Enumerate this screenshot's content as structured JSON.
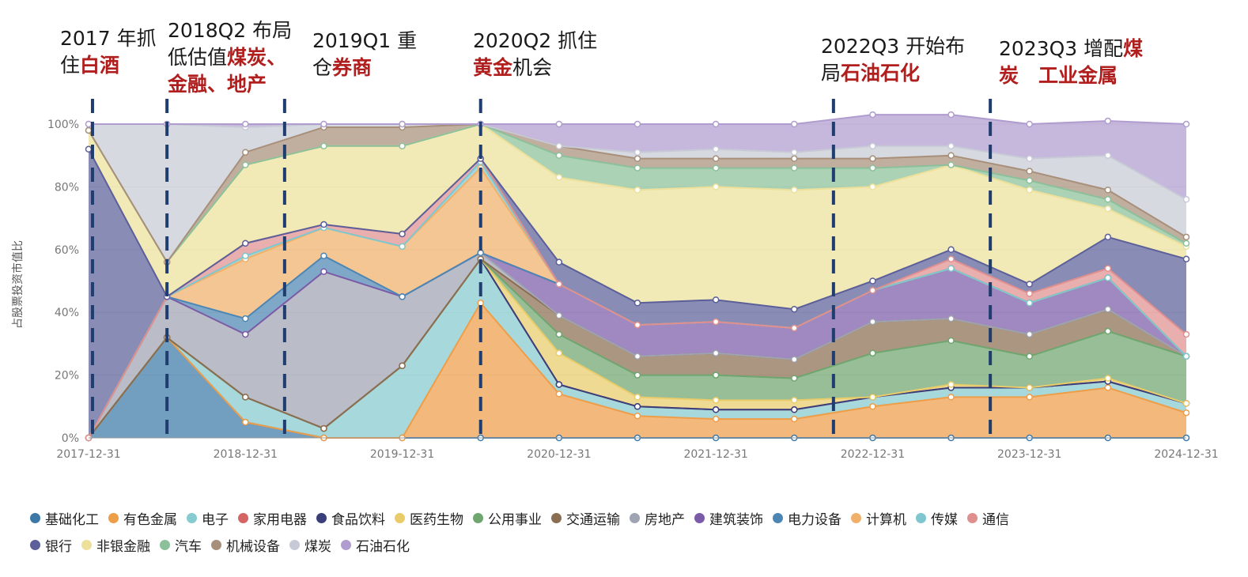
{
  "annotations": [
    {
      "lines": [
        [
          {
            "t": "2017 年抓",
            "h": false
          }
        ],
        [
          {
            "t": "住",
            "h": false
          },
          {
            "t": "白酒",
            "h": true
          }
        ]
      ]
    },
    {
      "lines": [
        [
          {
            "t": "2018Q2 布局",
            "h": false
          }
        ],
        [
          {
            "t": "低估值",
            "h": false
          },
          {
            "t": "煤炭、",
            "h": true
          }
        ],
        [
          {
            "t": "金融、地产",
            "h": true
          }
        ]
      ]
    },
    {
      "lines": [
        [
          {
            "t": "2019Q1 重",
            "h": false
          }
        ],
        [
          {
            "t": "仓",
            "h": false
          },
          {
            "t": "券商",
            "h": true
          }
        ]
      ]
    },
    {
      "lines": [
        [
          {
            "t": "2020Q2 抓住",
            "h": false
          }
        ],
        [
          {
            "t": "黄金",
            "h": true
          },
          {
            "t": "机会",
            "h": false
          }
        ]
      ]
    },
    {
      "lines": [
        [
          {
            "t": "2022Q3 开始布",
            "h": false
          }
        ],
        [
          {
            "t": "局",
            "h": false
          },
          {
            "t": "石油石化",
            "h": true
          }
        ]
      ]
    },
    {
      "lines": [
        [
          {
            "t": "2023Q3 增配",
            "h": false
          },
          {
            "t": "煤",
            "h": true
          }
        ],
        [
          {
            "t": "炭　工业金属",
            "h": true
          }
        ]
      ]
    }
  ],
  "chart_data": {
    "type": "area",
    "stacked": true,
    "ylabel": "占股票投资市值比",
    "y_ticks": [
      "0%",
      "20%",
      "40%",
      "60%",
      "80%",
      "100%"
    ],
    "ylim": [
      0,
      100
    ],
    "x_tick_labels": [
      "2017-12-31",
      "2018-12-31",
      "2019-12-31",
      "2020-12-31",
      "2021-12-31",
      "2022-12-31",
      "2023-12-31",
      "2024-12-31"
    ],
    "x": [
      "2017-12-31",
      "2018-06-30",
      "2018-12-31",
      "2019-06-30",
      "2019-12-31",
      "2020-06-30",
      "2020-12-31",
      "2021-06-30",
      "2021-12-31",
      "2022-06-30",
      "2022-12-31",
      "2023-06-30",
      "2023-12-31",
      "2024-06-30",
      "2024-12-31"
    ],
    "markers": [
      {
        "x": "2018-01",
        "label": "2017 年抓住白酒"
      },
      {
        "x": "2018-Q2",
        "label": "2018Q2 布局低估值煤炭、金融、地产"
      },
      {
        "x": "2019-Q1",
        "label": "2019Q1 重仓券商"
      },
      {
        "x": "2020-Q2",
        "label": "2020Q2 抓住黄金机会"
      },
      {
        "x": "2022-Q3",
        "label": "2022Q3 开始布局石油石化"
      },
      {
        "x": "2023-Q3",
        "label": "2023Q3 增配煤炭 工业金属"
      }
    ],
    "series": [
      {
        "name": "基础化工",
        "color": "#3b78a8",
        "values": [
          0,
          32,
          5,
          0,
          0,
          0,
          0,
          0,
          0,
          0,
          0,
          0,
          0,
          0,
          0
        ]
      },
      {
        "name": "有色金属",
        "color": "#ee9d48",
        "values": [
          0,
          0,
          0,
          0,
          0,
          43,
          14,
          7,
          6,
          6,
          10,
          13,
          13,
          16,
          8
        ]
      },
      {
        "name": "电子",
        "color": "#85cbcf",
        "values": [
          0,
          0,
          8,
          3,
          23,
          14,
          3,
          3,
          3,
          3,
          3,
          3,
          3,
          2,
          3
        ]
      },
      {
        "name": "家用电器",
        "color": "#d56565",
        "values": [
          0,
          0,
          0,
          0,
          0,
          0,
          0,
          0,
          0,
          0,
          0,
          0,
          0,
          0,
          0
        ]
      },
      {
        "name": "食品饮料",
        "color": "#3a3f7a",
        "values": [
          0,
          0,
          0,
          0,
          0,
          0,
          0,
          0,
          0,
          0,
          0,
          0,
          0,
          0,
          0
        ]
      },
      {
        "name": "医药生物",
        "color": "#e9cc69",
        "values": [
          0,
          0,
          0,
          0,
          0,
          0,
          10,
          3,
          3,
          3,
          0,
          1,
          0,
          1,
          0
        ]
      },
      {
        "name": "公用事业",
        "color": "#6fa56f",
        "values": [
          0,
          0,
          0,
          0,
          0,
          0,
          6,
          7,
          8,
          7,
          14,
          14,
          10,
          15,
          15
        ]
      },
      {
        "name": "交通运输",
        "color": "#8b6d52",
        "values": [
          0,
          0,
          0,
          0,
          0,
          0,
          6,
          6,
          7,
          6,
          10,
          7,
          7,
          7,
          0
        ]
      },
      {
        "name": "房地产",
        "color": "#9fa4b2",
        "values": [
          0,
          13,
          20,
          50,
          22,
          2,
          0,
          0,
          0,
          0,
          0,
          0,
          0,
          0,
          0
        ]
      },
      {
        "name": "建筑装饰",
        "color": "#7b5aa8",
        "values": [
          0,
          0,
          0,
          0,
          0,
          0,
          10,
          10,
          10,
          10,
          10,
          16,
          10,
          10,
          0
        ]
      },
      {
        "name": "电力设备",
        "color": "#4d86b3",
        "values": [
          0,
          0,
          5,
          5,
          0,
          0,
          0,
          0,
          0,
          0,
          0,
          0,
          0,
          0,
          0
        ]
      },
      {
        "name": "计算机",
        "color": "#f0b06a",
        "values": [
          0,
          0,
          19,
          9,
          16,
          27,
          0,
          0,
          0,
          0,
          0,
          0,
          0,
          0,
          0
        ]
      },
      {
        "name": "传媒",
        "color": "#7fc7cf",
        "values": [
          0,
          0,
          1,
          0,
          0,
          2,
          0,
          0,
          0,
          0,
          0,
          0,
          0,
          0,
          0
        ]
      },
      {
        "name": "通信",
        "color": "#e08f8f",
        "values": [
          0,
          0,
          4,
          1,
          4,
          1,
          0,
          0,
          0,
          0,
          0,
          3,
          3,
          3,
          7
        ]
      },
      {
        "name": "银行",
        "color": "#5c5f99",
        "values": [
          92,
          0,
          0,
          0,
          0,
          0,
          7,
          7,
          7,
          6,
          3,
          3,
          3,
          10,
          24
        ]
      },
      {
        "name": "非银金融",
        "color": "#ece09a",
        "values": [
          6,
          11,
          25,
          25,
          28,
          11,
          27,
          36,
          36,
          38,
          30,
          27,
          30,
          9,
          4
        ]
      },
      {
        "name": "汽车",
        "color": "#8cc09a",
        "values": [
          0,
          0,
          0,
          0,
          0,
          0,
          7,
          7,
          6,
          7,
          6,
          0,
          3,
          3,
          1
        ]
      },
      {
        "name": "机械设备",
        "color": "#a88f7a",
        "values": [
          0,
          0,
          4,
          6,
          6,
          0,
          3,
          3,
          3,
          3,
          3,
          3,
          3,
          3,
          2
        ]
      },
      {
        "name": "煤炭",
        "color": "#c7cad6",
        "values": [
          2,
          44,
          8,
          1,
          1,
          0,
          0,
          2,
          3,
          2,
          4,
          3,
          4,
          11,
          12
        ]
      },
      {
        "name": "石油石化",
        "color": "#b09ccf",
        "values": [
          0,
          0,
          1,
          0,
          0,
          0,
          7,
          9,
          8,
          9,
          10,
          10,
          11,
          11,
          24
        ]
      }
    ],
    "legend_position": "bottom"
  },
  "legend": [
    [
      "基础化工",
      "有色金属",
      "电子",
      "家用电器",
      "食品饮料",
      "医药生物",
      "公用事业",
      "交通运输",
      "房地产",
      "建筑装饰",
      "电力设备",
      "计算机",
      "传媒",
      "通信"
    ],
    [
      "银行",
      "非银金融",
      "汽车",
      "机械设备",
      "煤炭",
      "石油石化"
    ]
  ]
}
